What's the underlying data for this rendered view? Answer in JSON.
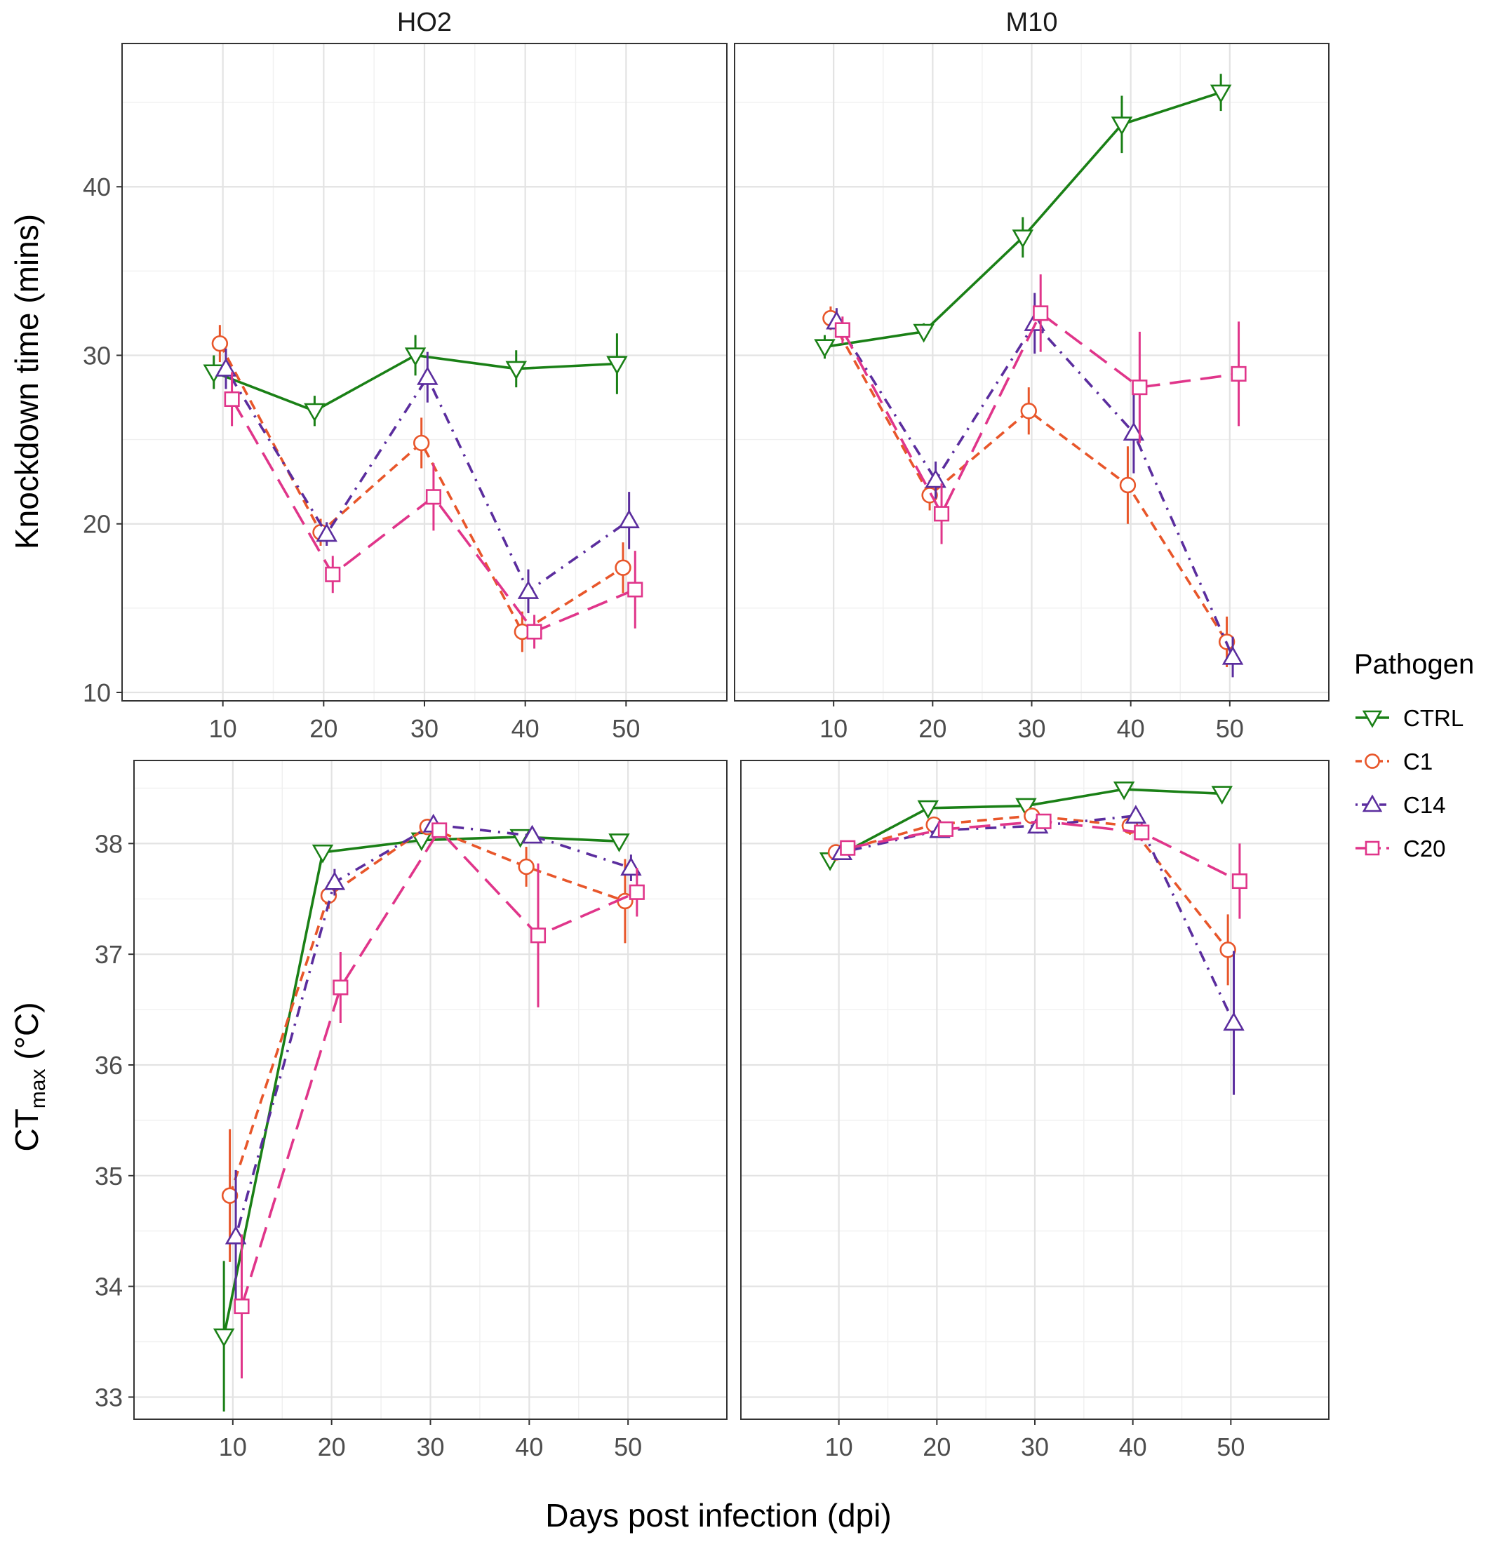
{
  "chart_data": {
    "type": "line",
    "xlabel": "Days post infection (dpi)",
    "legend": {
      "title": "Pathogen",
      "placement": "right",
      "entries": [
        "CTRL",
        "C1",
        "C14",
        "C20"
      ]
    },
    "series_styles": {
      "CTRL": {
        "color": "#1a8016",
        "marker": "triangle-down",
        "dash": "solid"
      },
      "C1": {
        "color": "#e8562a",
        "marker": "circle",
        "dash": "dashed"
      },
      "C14": {
        "color": "#5b2d9e",
        "marker": "triangle-up",
        "dash": "dotdash"
      },
      "C20": {
        "color": "#e0358a",
        "marker": "square",
        "dash": "longdash"
      }
    },
    "x_ticks": [
      10,
      20,
      30,
      40,
      50
    ],
    "xlim": [
      0,
      60
    ],
    "columns": [
      "HO2",
      "M10"
    ],
    "rows": [
      {
        "ylabel": "Knockdown time (mins)",
        "ylim": [
          9.5,
          48.5
        ],
        "y_ticks": [
          10,
          20,
          30,
          40
        ],
        "y_tick_labels": [
          "10",
          "20",
          "30",
          "40"
        ],
        "panels": [
          {
            "strip": "HO2",
            "series": [
              {
                "name": "CTRL",
                "x": [
                  10,
                  20,
                  30,
                  40,
                  50
                ],
                "y": [
                  29.0,
                  26.7,
                  30.0,
                  29.2,
                  29.5
                ],
                "err": [
                  1.0,
                  0.9,
                  1.2,
                  1.1,
                  1.8
                ]
              },
              {
                "name": "C1",
                "x": [
                  10,
                  20,
                  30,
                  40,
                  50
                ],
                "y": [
                  30.7,
                  19.5,
                  24.8,
                  13.6,
                  17.4
                ],
                "err": [
                  1.1,
                  0.8,
                  1.5,
                  1.2,
                  1.5
                ]
              },
              {
                "name": "C14",
                "x": [
                  10,
                  20,
                  30,
                  40,
                  50
                ],
                "y": [
                  29.2,
                  19.4,
                  28.7,
                  16.0,
                  20.2
                ],
                "err": [
                  1.2,
                  0.7,
                  1.5,
                  1.3,
                  1.7
                ]
              },
              {
                "name": "C20",
                "x": [
                  10,
                  20,
                  30,
                  40,
                  50
                ],
                "y": [
                  27.4,
                  17.0,
                  21.6,
                  13.6,
                  16.1
                ],
                "err": [
                  1.6,
                  1.1,
                  2.0,
                  1.0,
                  2.3
                ]
              }
            ]
          },
          {
            "strip": "M10",
            "series": [
              {
                "name": "CTRL",
                "x": [
                  10,
                  20,
                  30,
                  40,
                  50
                ],
                "y": [
                  30.5,
                  31.4,
                  37.0,
                  43.7,
                  45.6
                ],
                "err": [
                  0.7,
                  0.5,
                  1.2,
                  1.7,
                  1.1
                ]
              },
              {
                "name": "C1",
                "x": [
                  10,
                  20,
                  30,
                  40,
                  50
                ],
                "y": [
                  32.2,
                  21.7,
                  26.7,
                  22.3,
                  13.0
                ],
                "err": [
                  0.7,
                  0.9,
                  1.4,
                  2.3,
                  1.5
                ]
              },
              {
                "name": "C14",
                "x": [
                  10,
                  20,
                  30,
                  40,
                  50
                ],
                "y": [
                  32.0,
                  22.6,
                  31.9,
                  25.4,
                  12.1
                ],
                "err": [
                  0.8,
                  1.1,
                  1.8,
                  2.4,
                  1.2
                ]
              },
              {
                "name": "C20",
                "x": [
                  10,
                  20,
                  30,
                  40,
                  50
                ],
                "y": [
                  31.5,
                  20.6,
                  32.5,
                  28.1,
                  28.9
                ],
                "err": [
                  0.8,
                  1.8,
                  2.3,
                  3.3,
                  3.1
                ]
              }
            ]
          }
        ]
      },
      {
        "ylabel": "CTmax (°C)",
        "ylabel_parts": {
          "main": "CT",
          "sub": "max",
          "unit": " (°C)"
        },
        "ylim": [
          32.8,
          38.75
        ],
        "y_ticks": [
          33,
          34,
          35,
          36,
          37,
          38
        ],
        "y_tick_labels": [
          "33",
          "34",
          "35",
          "36",
          "37",
          "38"
        ],
        "panels": [
          {
            "strip": "",
            "series": [
              {
                "name": "CTRL",
                "x": [
                  10,
                  20,
                  30,
                  40,
                  50
                ],
                "y": [
                  33.55,
                  37.92,
                  38.03,
                  38.06,
                  38.02
                ],
                "err": [
                  0.68,
                  0.05,
                  0.05,
                  0.05,
                  0.05
                ]
              },
              {
                "name": "C1",
                "x": [
                  10,
                  20,
                  30,
                  40,
                  50
                ],
                "y": [
                  34.82,
                  37.53,
                  38.15,
                  37.79,
                  37.48
                ],
                "err": [
                  0.6,
                  0.12,
                  0.05,
                  0.18,
                  0.38
                ]
              },
              {
                "name": "C14",
                "x": [
                  10,
                  20,
                  30,
                  40,
                  50
                ],
                "y": [
                  34.45,
                  37.65,
                  38.17,
                  38.07,
                  37.78
                ],
                "err": [
                  0.6,
                  0.12,
                  0.05,
                  0.05,
                  0.12
                ]
              },
              {
                "name": "C20",
                "x": [
                  10,
                  20,
                  30,
                  40,
                  50
                ],
                "y": [
                  33.82,
                  36.7,
                  38.12,
                  37.17,
                  37.56
                ],
                "err": [
                  0.65,
                  0.32,
                  0.05,
                  0.65,
                  0.22
                ]
              }
            ]
          },
          {
            "strip": "",
            "series": [
              {
                "name": "CTRL",
                "x": [
                  10,
                  20,
                  30,
                  40,
                  50
                ],
                "y": [
                  37.85,
                  38.32,
                  38.34,
                  38.49,
                  38.45
                ],
                "err": [
                  0.04,
                  0.04,
                  0.04,
                  0.04,
                  0.04
                ]
              },
              {
                "name": "C1",
                "x": [
                  10,
                  20,
                  30,
                  40,
                  50
                ],
                "y": [
                  37.92,
                  38.17,
                  38.25,
                  38.16,
                  37.04
                ],
                "err": [
                  0.04,
                  0.04,
                  0.05,
                  0.08,
                  0.32
                ]
              },
              {
                "name": "C14",
                "x": [
                  10,
                  20,
                  30,
                  40,
                  50
                ],
                "y": [
                  37.92,
                  38.12,
                  38.16,
                  38.25,
                  36.38
                ],
                "err": [
                  0.04,
                  0.04,
                  0.07,
                  0.05,
                  0.65
                ]
              },
              {
                "name": "C20",
                "x": [
                  10,
                  20,
                  30,
                  40,
                  50
                ],
                "y": [
                  37.96,
                  38.13,
                  38.2,
                  38.1,
                  37.66
                ],
                "err": [
                  0.04,
                  0.04,
                  0.05,
                  0.08,
                  0.34
                ]
              }
            ]
          }
        ]
      }
    ]
  }
}
